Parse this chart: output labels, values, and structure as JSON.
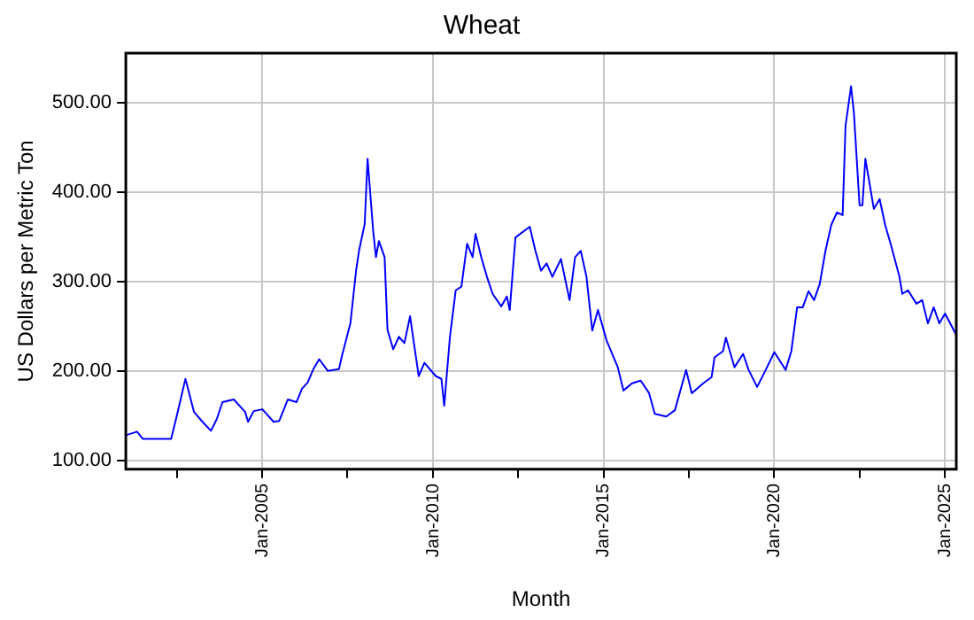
{
  "chart_data": {
    "type": "line",
    "title": "Wheat",
    "xlabel": "Month",
    "ylabel": "US Dollars per Metric Ton",
    "x": [
      "2001-01",
      "2001-05",
      "2001-07",
      "2001-12",
      "2002-05",
      "2002-07",
      "2002-10",
      "2003-01",
      "2003-04",
      "2003-07",
      "2003-09",
      "2003-11",
      "2004-03",
      "2004-07",
      "2004-08",
      "2004-10",
      "2005-01",
      "2005-05",
      "2005-07",
      "2005-10",
      "2006-01",
      "2006-03",
      "2006-05",
      "2006-07",
      "2006-09",
      "2006-12",
      "2007-04",
      "2007-05",
      "2007-08",
      "2007-10",
      "2007-11",
      "2008-01",
      "2008-02",
      "2008-04",
      "2008-05",
      "2008-06",
      "2008-08",
      "2008-09",
      "2008-11",
      "2009-01",
      "2009-03",
      "2009-05",
      "2009-06",
      "2009-08",
      "2009-10",
      "2010-02",
      "2010-04",
      "2010-05",
      "2010-07",
      "2010-09",
      "2010-11",
      "2011-01",
      "2011-03",
      "2011-04",
      "2011-06",
      "2011-08",
      "2011-10",
      "2012-01",
      "2012-03",
      "2012-04",
      "2012-06",
      "2012-11",
      "2013-01",
      "2013-03",
      "2013-05",
      "2013-07",
      "2013-10",
      "2014-01",
      "2014-03",
      "2014-05",
      "2014-07",
      "2014-09",
      "2014-11",
      "2015-02",
      "2015-06",
      "2015-08",
      "2015-11",
      "2016-02",
      "2016-05",
      "2016-07",
      "2016-11",
      "2017-02",
      "2017-06",
      "2017-08",
      "2017-12",
      "2018-03",
      "2018-04",
      "2018-07",
      "2018-08",
      "2018-10",
      "2018-11",
      "2019-02",
      "2019-04",
      "2019-07",
      "2019-10",
      "2020-01",
      "2020-03",
      "2020-05",
      "2020-07",
      "2020-09",
      "2020-11",
      "2021-01",
      "2021-03",
      "2021-05",
      "2021-07",
      "2021-09",
      "2021-11",
      "2022-01",
      "2022-02",
      "2022-04",
      "2022-05",
      "2022-07",
      "2022-08",
      "2022-09",
      "2022-12",
      "2023-02",
      "2023-04",
      "2023-06",
      "2023-09",
      "2023-10",
      "2023-12",
      "2024-03",
      "2024-05",
      "2024-07",
      "2024-09",
      "2024-11",
      "2025-01",
      "2025-05"
    ],
    "series": [
      {
        "color": "#0000ff",
        "values": [
          128,
          132,
          124,
          124,
          124,
          150,
          191,
          154,
          143,
          133,
          146,
          165,
          168,
          154,
          143,
          155,
          157,
          143,
          144,
          168,
          165,
          180,
          187,
          202,
          213,
          200,
          202,
          216,
          253,
          312,
          334,
          364,
          437,
          356,
          327,
          345,
          327,
          246,
          224,
          238,
          231,
          261,
          238,
          194,
          209,
          194,
          191,
          161,
          238,
          290,
          294,
          342,
          327,
          353,
          327,
          305,
          286,
          272,
          283,
          268,
          349,
          361,
          334,
          312,
          320,
          305,
          325,
          279,
          327,
          334,
          305,
          245,
          268,
          234,
          204,
          178,
          186,
          189,
          175,
          152,
          149,
          156,
          201,
          175,
          186,
          193,
          215,
          222,
          237,
          215,
          204,
          219,
          201,
          182,
          201,
          221,
          211,
          201,
          222,
          271,
          271,
          289,
          279,
          297,
          334,
          363,
          377,
          374,
          474,
          518,
          489,
          385,
          385,
          437,
          381,
          392,
          363,
          341,
          305,
          286,
          290,
          275,
          279,
          253,
          271,
          253,
          264,
          240
        ]
      }
    ],
    "xlim": [
      "2001-01",
      "2025-05"
    ],
    "xticks": [
      {
        "value": "2002-07",
        "label": null
      },
      {
        "value": "2005-01",
        "label": "Jan-2005"
      },
      {
        "value": "2007-07",
        "label": null
      },
      {
        "value": "2010-01",
        "label": "Jan-2010"
      },
      {
        "value": "2012-07",
        "label": null
      },
      {
        "value": "2015-01",
        "label": "Jan-2015"
      },
      {
        "value": "2017-07",
        "label": null
      },
      {
        "value": "2020-01",
        "label": "Jan-2020"
      },
      {
        "value": "2022-07",
        "label": null
      },
      {
        "value": "2025-01",
        "label": "Jan-2025"
      }
    ],
    "ylim": [
      90,
      555
    ],
    "yticks": [
      {
        "value": 100,
        "label": "100.00"
      },
      {
        "value": 200,
        "label": "200.00"
      },
      {
        "value": 300,
        "label": "300.00"
      },
      {
        "value": 400,
        "label": "400.00"
      },
      {
        "value": 500,
        "label": "500.00"
      }
    ],
    "grid": true,
    "legend": false,
    "marker": "none",
    "line_style": "solid"
  }
}
